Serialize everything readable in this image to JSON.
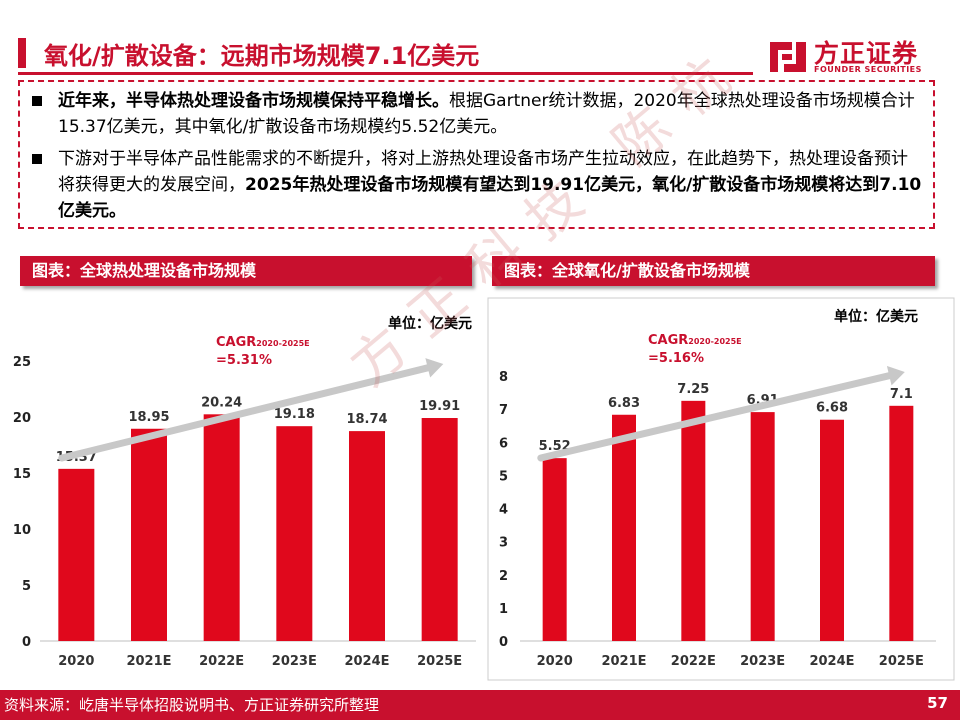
{
  "header": {
    "title": "氧化/扩散设备：远期市场规模7.1亿美元",
    "logo_cn": "方正证券",
    "logo_en": "FOUNDER SECURITIES"
  },
  "summary": {
    "bullet1_bold": "近年来，半导体热处理设备市场规模保持平稳增长。",
    "bullet1_text": "根据Gartner统计数据，2020年全球热处理设备市场规模合计15.37亿美元，其中氧化/扩散设备市场规模约5.52亿美元。",
    "bullet2_text": "下游对于半导体产品性能需求的不断提升，将对上游热处理设备市场产生拉动效应，在此趋势下，热处理设备预计将获得更大的发展空间，",
    "bullet2_bold": "2025年热处理设备市场规模有望达到19.91亿美元，氧化/扩散设备市场规模将达到7.10亿美元。"
  },
  "chart_headers": {
    "left": "图表：全球热处理设备市场规模",
    "right": "图表：全球氧化/扩散设备市场规模"
  },
  "watermark": "方正科技 陈杭",
  "footer": {
    "source": "资料来源：屹唐半导体招股说明书、方正证券研究所整理",
    "page": "57"
  },
  "colors": {
    "brand_red": "#c8102e",
    "bar_red": "#e0081c",
    "arrow_gray": "#c8c8c8"
  },
  "chart_data": [
    {
      "type": "bar",
      "title": "图表：全球热处理设备市场规模",
      "unit": "单位：亿美元",
      "categories": [
        "2020",
        "2021E",
        "2022E",
        "2023E",
        "2024E",
        "2025E"
      ],
      "values": [
        15.37,
        18.95,
        20.24,
        19.18,
        18.74,
        19.91
      ],
      "value_labels": [
        "15.37",
        "18.95",
        "20.24",
        "19.18",
        "18.74",
        "19.91"
      ],
      "ylim": [
        0,
        25
      ],
      "yticks": [
        0,
        5,
        10,
        15,
        20,
        25
      ],
      "ytick_labels": [
        "0",
        "5",
        "10",
        "15",
        "20",
        "25"
      ],
      "cagr_label": "CAGR",
      "cagr_period": "2020-2025E",
      "cagr_value": "=5.31%",
      "grid": false,
      "trend_arrow": true
    },
    {
      "type": "bar",
      "title": "图表：全球氧化/扩散设备市场规模",
      "unit": "单位：亿美元",
      "categories": [
        "2020",
        "2021E",
        "2022E",
        "2023E",
        "2024E",
        "2025E"
      ],
      "values": [
        5.52,
        6.83,
        7.25,
        6.91,
        6.68,
        7.1
      ],
      "value_labels": [
        "5.52",
        "6.83",
        "7.25",
        "6.91",
        "6.68",
        "7.1"
      ],
      "ylim": [
        0,
        8
      ],
      "yticks": [
        0,
        1,
        2,
        3,
        4,
        5,
        6,
        7,
        8
      ],
      "ytick_labels": [
        "0",
        "1",
        "2",
        "3",
        "4",
        "5",
        "6",
        "7",
        "8"
      ],
      "cagr_label": "CAGR",
      "cagr_period": "2020-2025E",
      "cagr_value": "=5.16%",
      "grid": false,
      "trend_arrow": true
    }
  ]
}
